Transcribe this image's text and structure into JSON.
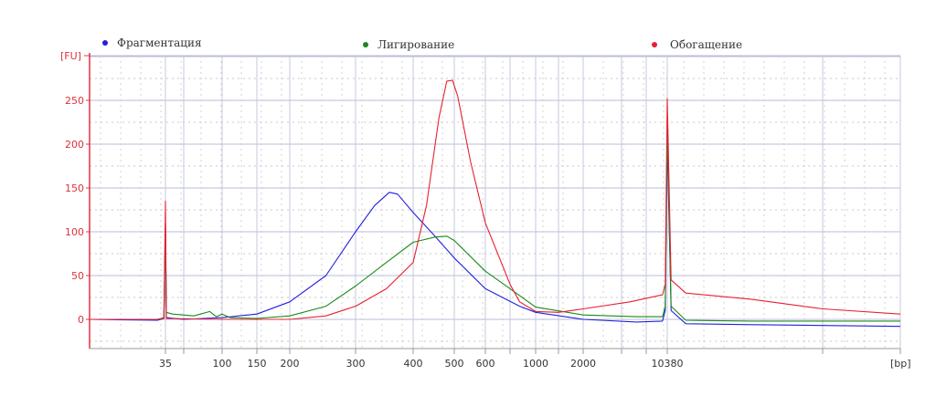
{
  "chart_data": {
    "type": "line",
    "title": "",
    "xlabel": "[bp]",
    "ylabel": "[FU]",
    "ylim": [
      -33,
      301
    ],
    "yticks": [
      0,
      50,
      100,
      150,
      200,
      250
    ],
    "xticks": [
      35,
      100,
      150,
      200,
      300,
      400,
      500,
      600,
      1000,
      2000,
      10380
    ],
    "xtick_labels": [
      "35",
      "100",
      "150",
      "200",
      "300",
      "400",
      "500",
      "600",
      "1000",
      "2000",
      "10380"
    ],
    "grid": true,
    "legend_position": "top",
    "series": [
      {
        "name": "Фрагментация",
        "color": "#2020e0",
        "points": [
          [
            20,
            0
          ],
          [
            33,
            -1
          ],
          [
            34.6,
            1
          ],
          [
            35,
            110
          ],
          [
            35.6,
            2
          ],
          [
            50,
            0
          ],
          [
            100,
            2
          ],
          [
            150,
            6
          ],
          [
            200,
            20
          ],
          [
            250,
            50
          ],
          [
            300,
            100
          ],
          [
            330,
            130
          ],
          [
            355,
            145
          ],
          [
            370,
            143
          ],
          [
            400,
            122
          ],
          [
            450,
            95
          ],
          [
            500,
            70
          ],
          [
            600,
            35
          ],
          [
            800,
            15
          ],
          [
            1000,
            8
          ],
          [
            2000,
            0
          ],
          [
            5000,
            -3
          ],
          [
            9500,
            -2
          ],
          [
            10000,
            10
          ],
          [
            10380,
            205
          ],
          [
            10700,
            10
          ],
          [
            12000,
            -5
          ],
          [
            20000,
            -6
          ],
          [
            60000,
            -8
          ]
        ]
      },
      {
        "name": "Лигирование",
        "color": "#1a8a1a",
        "points": [
          [
            20,
            0
          ],
          [
            33,
            0
          ],
          [
            34.6,
            2
          ],
          [
            35,
            105
          ],
          [
            35.6,
            8
          ],
          [
            40,
            6
          ],
          [
            60,
            4
          ],
          [
            80,
            9
          ],
          [
            90,
            3
          ],
          [
            100,
            6
          ],
          [
            110,
            2
          ],
          [
            150,
            1
          ],
          [
            200,
            4
          ],
          [
            250,
            15
          ],
          [
            300,
            38
          ],
          [
            350,
            65
          ],
          [
            400,
            88
          ],
          [
            450,
            94
          ],
          [
            480,
            95
          ],
          [
            500,
            90
          ],
          [
            600,
            55
          ],
          [
            700,
            35
          ],
          [
            1000,
            14
          ],
          [
            2000,
            5
          ],
          [
            5000,
            3
          ],
          [
            9500,
            3
          ],
          [
            10000,
            15
          ],
          [
            10380,
            220
          ],
          [
            10700,
            15
          ],
          [
            12000,
            -1
          ],
          [
            20000,
            -2
          ],
          [
            60000,
            -2
          ]
        ]
      },
      {
        "name": "Обогащение",
        "color": "#e82030",
        "points": [
          [
            20,
            0
          ],
          [
            33,
            0
          ],
          [
            34.6,
            1
          ],
          [
            35,
            135
          ],
          [
            35.6,
            1
          ],
          [
            100,
            0
          ],
          [
            200,
            0
          ],
          [
            250,
            4
          ],
          [
            300,
            15
          ],
          [
            350,
            35
          ],
          [
            400,
            65
          ],
          [
            430,
            130
          ],
          [
            460,
            230
          ],
          [
            480,
            272
          ],
          [
            495,
            273
          ],
          [
            510,
            255
          ],
          [
            550,
            180
          ],
          [
            600,
            110
          ],
          [
            700,
            40
          ],
          [
            800,
            20
          ],
          [
            1000,
            9
          ],
          [
            1500,
            8
          ],
          [
            2000,
            12
          ],
          [
            4000,
            20
          ],
          [
            9500,
            28
          ],
          [
            10000,
            40
          ],
          [
            10380,
            252
          ],
          [
            10700,
            45
          ],
          [
            12000,
            30
          ],
          [
            20000,
            23
          ],
          [
            35000,
            12
          ],
          [
            60000,
            6
          ]
        ]
      }
    ]
  }
}
